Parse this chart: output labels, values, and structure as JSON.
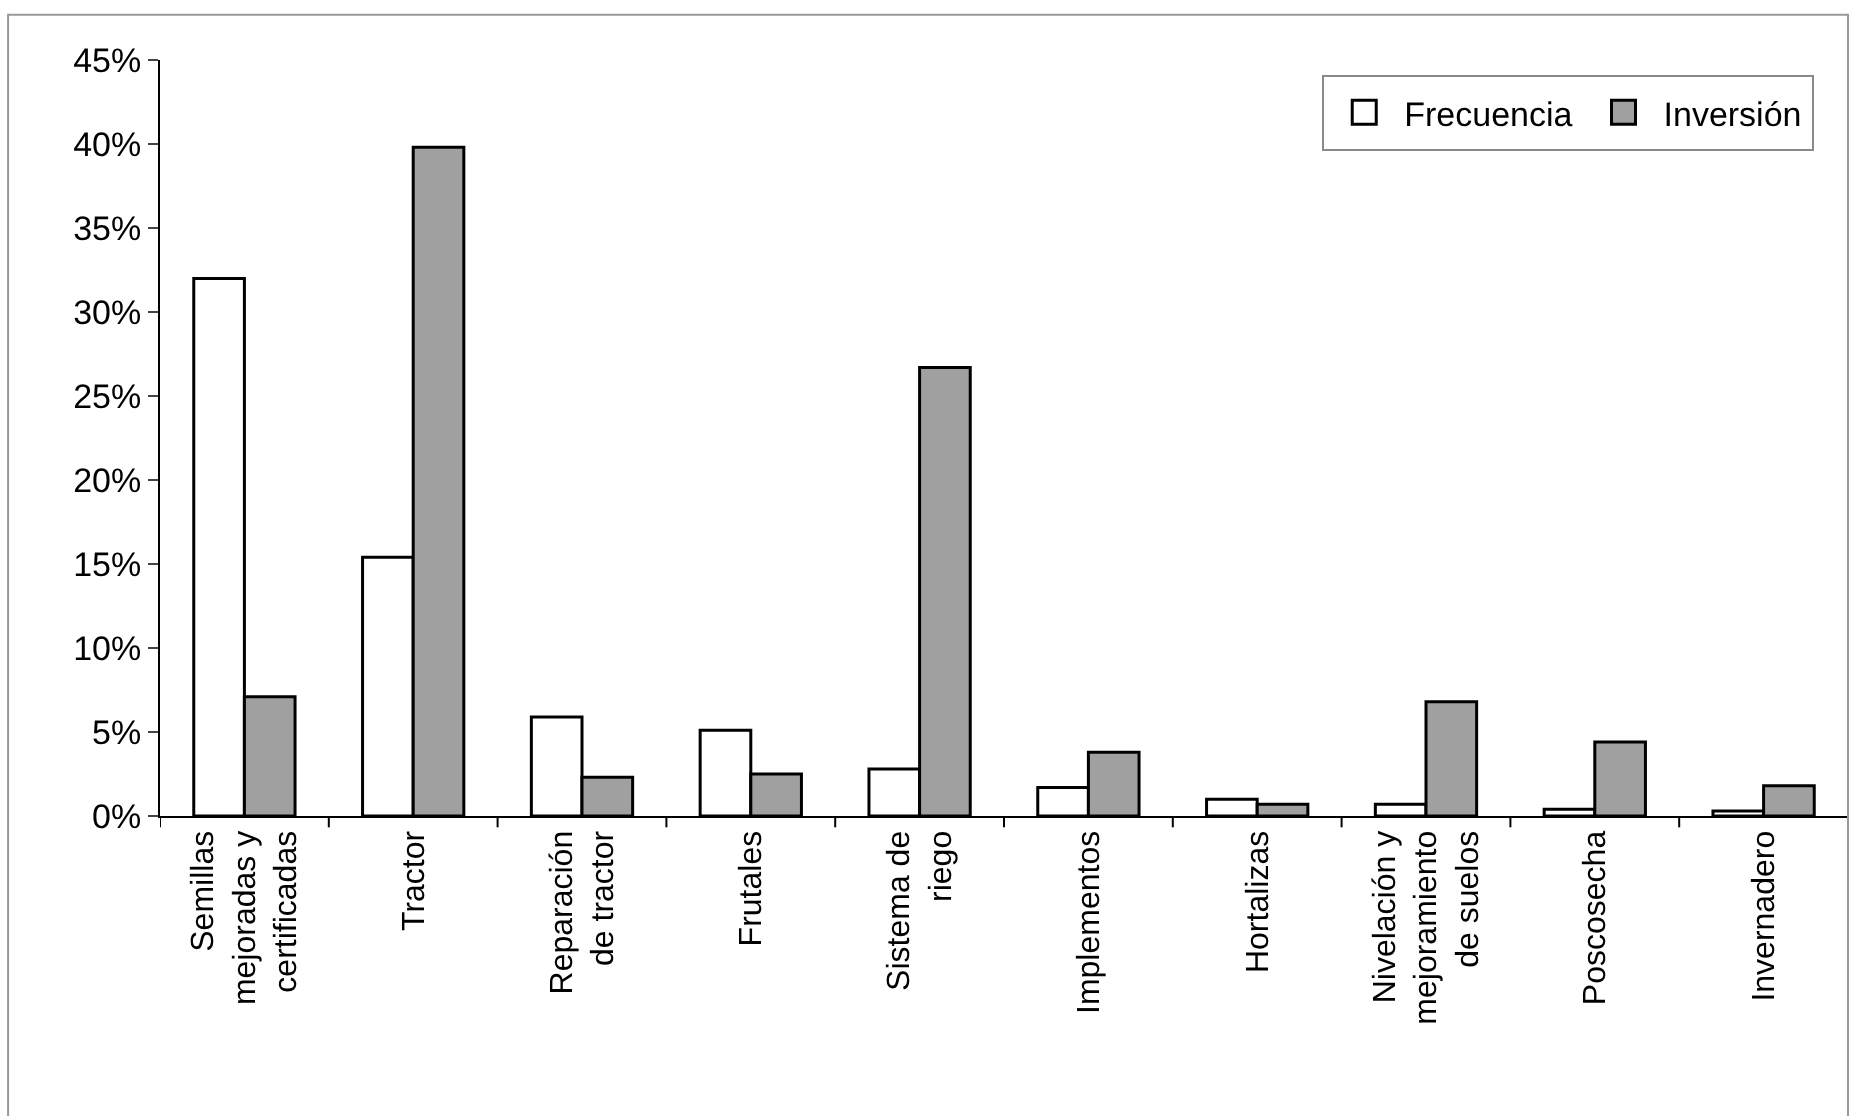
{
  "chart_data": {
    "type": "bar",
    "categories": [
      "Semillas\nmejoradas y\ncertificadas",
      "Tractor",
      "Reparación\nde tractor",
      "Frutales",
      "Sistema de\nriego",
      "Implementos",
      "Hortalizas",
      "Nivelación y\nmejoramiento\nde suelos",
      "Poscosecha",
      "Invernadero"
    ],
    "series": [
      {
        "name": "Frecuencia",
        "color": "#ffffff",
        "values": [
          32.0,
          15.4,
          5.9,
          5.1,
          2.8,
          1.7,
          1.0,
          0.7,
          0.4,
          0.3
        ]
      },
      {
        "name": "Inversión",
        "color": "#a0a0a0",
        "values": [
          7.1,
          39.8,
          2.3,
          2.5,
          26.7,
          3.8,
          0.7,
          6.8,
          4.4,
          1.8
        ]
      }
    ],
    "ylim": [
      0,
      45
    ],
    "yticks": [
      {
        "value": 0,
        "label": "0%"
      },
      {
        "value": 5,
        "label": "5%"
      },
      {
        "value": 10,
        "label": "10%"
      },
      {
        "value": 15,
        "label": "15%"
      },
      {
        "value": 20,
        "label": "20%"
      },
      {
        "value": 25,
        "label": "25%"
      },
      {
        "value": 30,
        "label": "30%"
      },
      {
        "value": 35,
        "label": "35%"
      },
      {
        "value": 40,
        "label": "40%"
      },
      {
        "value": 45,
        "label": "45%"
      }
    ],
    "grid": false,
    "legend": "top right"
  }
}
